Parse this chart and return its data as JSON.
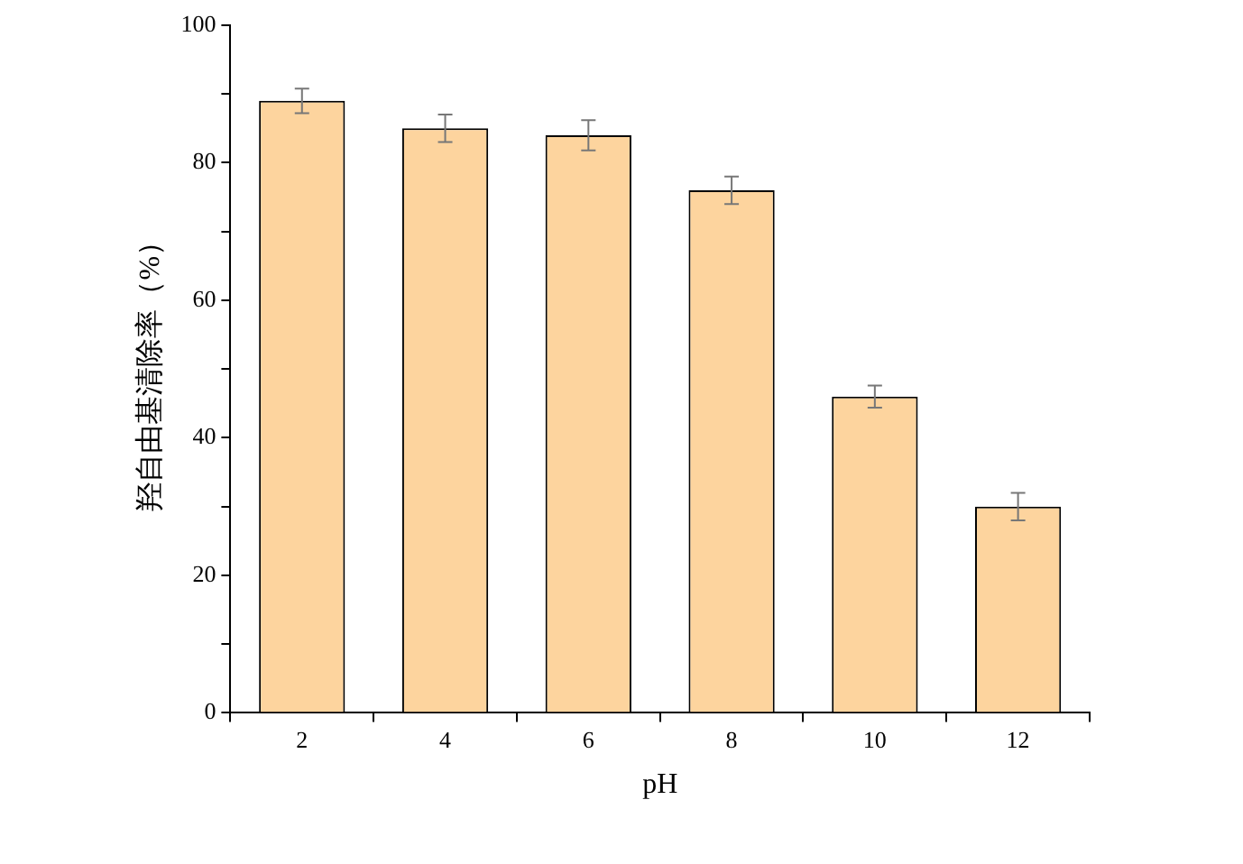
{
  "chart_data": {
    "type": "bar",
    "xlabel": "pH",
    "ylabel": "羟自由基清除率（%）",
    "categories": [
      "2",
      "4",
      "6",
      "8",
      "10",
      "12"
    ],
    "values": [
      89,
      85,
      84,
      76,
      46,
      30
    ],
    "errors": [
      1.8,
      2,
      2.2,
      2,
      1.6,
      2
    ],
    "color": "#fdd49e",
    "ylim": [
      0,
      100
    ],
    "yticks": [
      0,
      {
        "value": 10,
        "label": null
      },
      20,
      {
        "value": 30,
        "label": null
      },
      40,
      {
        "value": 50,
        "label": null
      },
      60,
      {
        "value": 70,
        "label": null
      },
      80,
      {
        "value": 90,
        "label": null
      },
      100
    ],
    "grid": false,
    "legend": false
  }
}
